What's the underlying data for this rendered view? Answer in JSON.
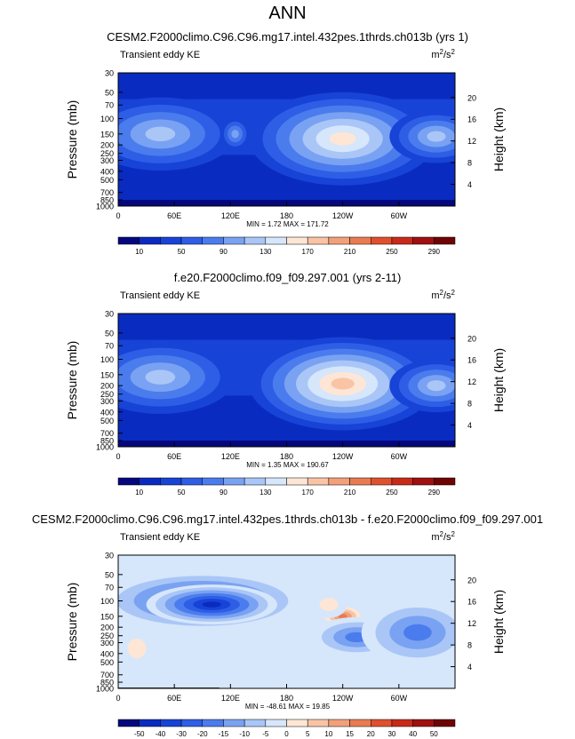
{
  "page_title": "ANN",
  "chart_data": [
    {
      "type": "heatmap",
      "title": "CESM2.F2000climo.C96.C96.mg17.intel.432pes.1thrds.ch013b (yrs 1)",
      "subtitle_left": "Transient eddy KE",
      "units": "m²/s²",
      "units_base": "m",
      "units_sup1": "2",
      "units_mid": "/s",
      "units_sup2": "2",
      "ylabel": "Pressure (mb)",
      "ylabel_right": "Height (km)",
      "yticks": [
        "30",
        "50",
        "70",
        "100",
        "150",
        "200",
        "250",
        "300",
        "400",
        "500",
        "700",
        "850",
        "1000"
      ],
      "yticks_right": [
        "20",
        "16",
        "12",
        "8",
        "4"
      ],
      "xticks": [
        "0",
        "60E",
        "120E",
        "180",
        "120W",
        "60W"
      ],
      "stats": "MIN =   1.72  MAX = 171.72",
      "colorbar_labels": [
        "10",
        "50",
        "90",
        "130",
        "170",
        "210",
        "250",
        "290"
      ],
      "colorbar_colors": [
        "#04087c",
        "#0a2bc0",
        "#1743d6",
        "#2e5ee6",
        "#4a7ced",
        "#7aa2f2",
        "#a9c6f7",
        "#d6e6fb",
        "#fde6d6",
        "#f9c4a6",
        "#f2a07a",
        "#ea7a52",
        "#e0502e",
        "#c82a1a",
        "#a01010",
        "#6e0404"
      ],
      "blobs": [
        {
          "lon": 45,
          "p": 150,
          "rx": 40,
          "ry": 0.55,
          "level": 6
        },
        {
          "lon": 125,
          "p": 150,
          "rx": 8,
          "ry": 0.25,
          "level": 5
        },
        {
          "lon": 240,
          "p": 170,
          "rx": 50,
          "ry": 0.7,
          "level": 8
        },
        {
          "lon": 340,
          "p": 160,
          "rx": 25,
          "ry": 0.4,
          "level": 6
        }
      ]
    },
    {
      "type": "heatmap",
      "title": "f.e20.F2000climo.f09_f09.297.001 (yrs 2-11)",
      "subtitle_left": "Transient eddy KE",
      "units": "m²/s²",
      "units_base": "m",
      "units_sup1": "2",
      "units_mid": "/s",
      "units_sup2": "2",
      "ylabel": "Pressure (mb)",
      "ylabel_right": "Height (km)",
      "yticks": [
        "30",
        "50",
        "70",
        "100",
        "150",
        "200",
        "250",
        "300",
        "400",
        "500",
        "700",
        "850",
        "1000"
      ],
      "yticks_right": [
        "20",
        "16",
        "12",
        "8",
        "4"
      ],
      "xticks": [
        "0",
        "60E",
        "120E",
        "180",
        "120W",
        "60W"
      ],
      "stats": "MIN =   1.35  MAX = 190.67",
      "colorbar_labels": [
        "10",
        "50",
        "90",
        "130",
        "170",
        "210",
        "250",
        "290"
      ],
      "colorbar_colors": [
        "#04087c",
        "#0a2bc0",
        "#1743d6",
        "#2e5ee6",
        "#4a7ced",
        "#7aa2f2",
        "#a9c6f7",
        "#d6e6fb",
        "#fde6d6",
        "#f9c4a6",
        "#f2a07a",
        "#ea7a52",
        "#e0502e",
        "#c82a1a",
        "#a01010",
        "#6e0404"
      ],
      "blobs": [
        {
          "lon": 45,
          "p": 160,
          "rx": 40,
          "ry": 0.55,
          "level": 6
        },
        {
          "lon": 240,
          "p": 190,
          "rx": 50,
          "ry": 0.7,
          "level": 9
        },
        {
          "lon": 340,
          "p": 200,
          "rx": 25,
          "ry": 0.4,
          "level": 6
        }
      ]
    },
    {
      "type": "heatmap",
      "title": "CESM2.F2000climo.C96.C96.mg17.intel.432pes.1thrds.ch013b - f.e20.F2000climo.f09_f09.297.001",
      "subtitle_left": "Transient eddy KE",
      "units": "m²/s²",
      "units_base": "m",
      "units_sup1": "2",
      "units_mid": "/s",
      "units_sup2": "2",
      "ylabel": "Pressure (mb)",
      "ylabel_right": "Height (km)",
      "yticks": [
        "30",
        "50",
        "70",
        "100",
        "150",
        "200",
        "250",
        "300",
        "400",
        "500",
        "700",
        "850",
        "1000"
      ],
      "yticks_right": [
        "20",
        "16",
        "12",
        "8",
        "4"
      ],
      "xticks": [
        "0",
        "60E",
        "120E",
        "180",
        "120W",
        "60W"
      ],
      "stats": "MIN = -48.61  MAX = 19.85",
      "colorbar_labels": [
        "-50",
        "-40",
        "-30",
        "-20",
        "-15",
        "-10",
        "-5",
        "0",
        "5",
        "10",
        "15",
        "20",
        "30",
        "40",
        "50"
      ],
      "colorbar_colors": [
        "#04087c",
        "#0a2bc0",
        "#1743d6",
        "#2e5ee6",
        "#4a7ced",
        "#7aa2f2",
        "#a9c6f7",
        "#d6e6fb",
        "#fde6d6",
        "#f9c4a6",
        "#f2a07a",
        "#ea7a52",
        "#e0502e",
        "#c82a1a",
        "#a01010",
        "#6e0404"
      ],
      "blobs": [
        {
          "lon": 90,
          "p": 100,
          "rx": 55,
          "ry": 0.45,
          "level": 2
        },
        {
          "lon": 100,
          "p": 110,
          "rx": 35,
          "ry": 0.3,
          "level": 1
        },
        {
          "lon": 240,
          "p": 150,
          "rx": 12,
          "ry": 0.18,
          "level": 11
        },
        {
          "lon": 225,
          "p": 110,
          "rx": 10,
          "ry": 0.2,
          "level": 8
        },
        {
          "lon": 255,
          "p": 260,
          "rx": 25,
          "ry": 0.3,
          "level": 4
        },
        {
          "lon": 320,
          "p": 230,
          "rx": 30,
          "ry": 0.5,
          "level": 4
        },
        {
          "lon": 20,
          "p": 350,
          "rx": 10,
          "ry": 0.3,
          "level": 8
        }
      ]
    }
  ]
}
